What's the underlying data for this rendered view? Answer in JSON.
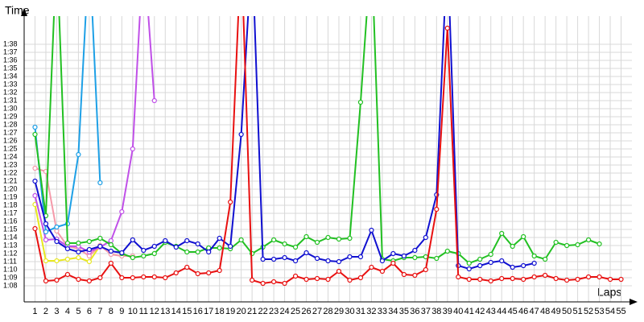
{
  "chart_data": {
    "type": "line",
    "y_label": "Time",
    "x_label": "Laps",
    "x": [
      1,
      2,
      3,
      4,
      5,
      6,
      7,
      8,
      9,
      10,
      11,
      12,
      13,
      14,
      15,
      16,
      17,
      18,
      19,
      20,
      21,
      22,
      23,
      24,
      25,
      26,
      27,
      28,
      29,
      30,
      31,
      32,
      33,
      34,
      35,
      36,
      37,
      38,
      39,
      40,
      41,
      42,
      43,
      44,
      45,
      46,
      47,
      48,
      49,
      50,
      51,
      52,
      53,
      54,
      55
    ],
    "xlim": [
      0,
      56
    ],
    "xticks": [
      1,
      2,
      3,
      4,
      5,
      6,
      7,
      8,
      9,
      10,
      11,
      12,
      13,
      14,
      15,
      16,
      17,
      18,
      19,
      20,
      21,
      22,
      23,
      24,
      25,
      26,
      27,
      28,
      29,
      30,
      31,
      32,
      33,
      34,
      35,
      36,
      37,
      38,
      39,
      40,
      41,
      42,
      43,
      44,
      45,
      46,
      47,
      48,
      49,
      50,
      51,
      52,
      53,
      54,
      55
    ],
    "ylim": [
      66,
      101.5
    ],
    "yticks": [
      {
        "value": 68,
        "label": "1:08"
      },
      {
        "value": 69,
        "label": "1:09"
      },
      {
        "value": 70,
        "label": "1:10"
      },
      {
        "value": 71,
        "label": "1:11"
      },
      {
        "value": 72,
        "label": "1:12"
      },
      {
        "value": 73,
        "label": "1:13"
      },
      {
        "value": 74,
        "label": "1:14"
      },
      {
        "value": 75,
        "label": "1:15"
      },
      {
        "value": 76,
        "label": "1:16"
      },
      {
        "value": 77,
        "label": "1:17"
      },
      {
        "value": 78,
        "label": "1:18"
      },
      {
        "value": 79,
        "label": "1:19"
      },
      {
        "value": 80,
        "label": "1:20"
      },
      {
        "value": 81,
        "label": "1:21"
      },
      {
        "value": 82,
        "label": "1:22"
      },
      {
        "value": 83,
        "label": "1:23"
      },
      {
        "value": 84,
        "label": "1:24"
      },
      {
        "value": 85,
        "label": "1:25"
      },
      {
        "value": 86,
        "label": "1:26"
      },
      {
        "value": 87,
        "label": "1:27"
      },
      {
        "value": 88,
        "label": "1:28"
      },
      {
        "value": 89,
        "label": "1:29"
      },
      {
        "value": 90,
        "label": "1:30"
      },
      {
        "value": 91,
        "label": "1:31"
      },
      {
        "value": 92,
        "label": "1:32"
      },
      {
        "value": 93,
        "label": "1:33"
      },
      {
        "value": 94,
        "label": "1:34"
      },
      {
        "value": 95,
        "label": "1:35"
      },
      {
        "value": 96,
        "label": "1:36"
      },
      {
        "value": 97,
        "label": "1:37"
      },
      {
        "value": 98,
        "label": "1:38"
      }
    ],
    "grid": true,
    "series": [
      {
        "color": "#e8e820",
        "values": [
          78.1,
          71.1,
          71.1,
          71.3,
          71.5,
          71,
          73,
          null,
          null,
          null,
          null,
          null,
          null,
          null,
          null,
          null,
          null,
          null,
          null,
          null,
          null,
          null,
          null,
          null,
          null,
          null,
          null,
          null,
          null,
          null,
          null,
          null,
          null,
          null,
          null,
          null,
          null,
          null,
          null,
          null,
          null,
          null,
          null,
          null,
          null,
          null,
          null,
          null,
          null,
          null,
          null,
          null,
          null,
          null,
          null
        ]
      },
      {
        "color": "#f59aaa",
        "values": [
          82.6,
          82.2,
          74.8,
          72.9,
          72.6,
          71.7,
          73,
          71.9,
          71.7,
          71.7,
          null,
          null,
          null,
          null,
          null,
          null,
          null,
          null,
          null,
          null,
          null,
          null,
          null,
          null,
          null,
          null,
          null,
          null,
          null,
          null,
          null,
          null,
          null,
          null,
          null,
          null,
          null,
          null,
          null,
          null,
          null,
          null,
          null,
          null,
          null,
          null,
          null,
          null,
          null,
          null,
          null,
          null,
          null,
          null,
          null
        ]
      },
      {
        "color": "#c050e8",
        "values": [
          79.2,
          73.7,
          73.8,
          72.9,
          72.9,
          72.2,
          72.8,
          73.6,
          77.2,
          85,
          110,
          91,
          null,
          null,
          null,
          null,
          null,
          null,
          null,
          null,
          null,
          null,
          null,
          null,
          null,
          null,
          null,
          null,
          null,
          null,
          null,
          null,
          null,
          null,
          null,
          null,
          null,
          null,
          null,
          null,
          null,
          null,
          null,
          null,
          null,
          null,
          null,
          null,
          null,
          null,
          null,
          null,
          null,
          null,
          null
        ]
      },
      {
        "color": "#1ea0e6",
        "values": [
          87.7,
          74.7,
          75.3,
          75.7,
          84.3,
          110,
          80.8,
          null,
          null,
          null,
          null,
          null,
          null,
          null,
          null,
          null,
          null,
          null,
          null,
          null,
          null,
          null,
          null,
          null,
          null,
          null,
          null,
          null,
          null,
          null,
          null,
          null,
          null,
          null,
          null,
          null,
          null,
          null,
          null,
          null,
          null,
          null,
          null,
          null,
          null,
          null,
          null,
          null,
          null,
          null,
          null,
          null,
          null,
          null,
          null
        ]
      },
      {
        "color": "#22c022",
        "values": [
          86.8,
          76.7,
          110,
          73.3,
          73.3,
          73.5,
          73.9,
          73.1,
          72,
          71.5,
          71.7,
          72,
          73.4,
          72.9,
          72.2,
          72.2,
          72.7,
          72.7,
          72.6,
          73.7,
          72,
          72.8,
          73.7,
          73.2,
          72.8,
          74.1,
          73.4,
          74,
          73.8,
          73.9,
          90.8,
          110,
          71.3,
          71.1,
          71.5,
          71.5,
          71.6,
          71.4,
          72.3,
          72,
          70.8,
          71.3,
          71.9,
          74.5,
          72.9,
          74.1,
          71.7,
          71.3,
          73.4,
          73,
          73.1,
          73.7,
          73.2,
          null,
          null
        ]
      },
      {
        "color": "#1010d0",
        "values": [
          81,
          75.7,
          73.5,
          72.6,
          72.2,
          72.5,
          72.9,
          72.3,
          72.1,
          73.7,
          72.4,
          72.9,
          73.6,
          72.8,
          73.6,
          73.2,
          72.2,
          73.9,
          72.9,
          86.8,
          110,
          71.3,
          71.3,
          71.5,
          71.1,
          72.1,
          71.4,
          71.1,
          71,
          71.6,
          71.6,
          74.9,
          71.1,
          72,
          71.7,
          72.4,
          74,
          79.3,
          110,
          70.5,
          70.1,
          70.5,
          70.9,
          71.1,
          70.3,
          70.5,
          70.8,
          null,
          null,
          null,
          null,
          null,
          null,
          null,
          null
        ]
      },
      {
        "color": "#e81010",
        "values": [
          75.1,
          68.6,
          68.7,
          69.4,
          68.8,
          68.6,
          69,
          70.8,
          69,
          69,
          69.1,
          69.1,
          69,
          69.6,
          70.3,
          69.5,
          69.6,
          69.9,
          78.4,
          110,
          68.7,
          68.3,
          68.5,
          68.3,
          69.2,
          68.8,
          68.9,
          68.8,
          69.8,
          68.7,
          69,
          70.3,
          69.8,
          70.8,
          69.4,
          69.3,
          70,
          77.5,
          100,
          69.1,
          68.8,
          68.8,
          68.6,
          68.9,
          68.9,
          68.8,
          69.1,
          69.3,
          68.9,
          68.7,
          68.8,
          69.1,
          69.1,
          68.8,
          68.8
        ]
      }
    ]
  }
}
